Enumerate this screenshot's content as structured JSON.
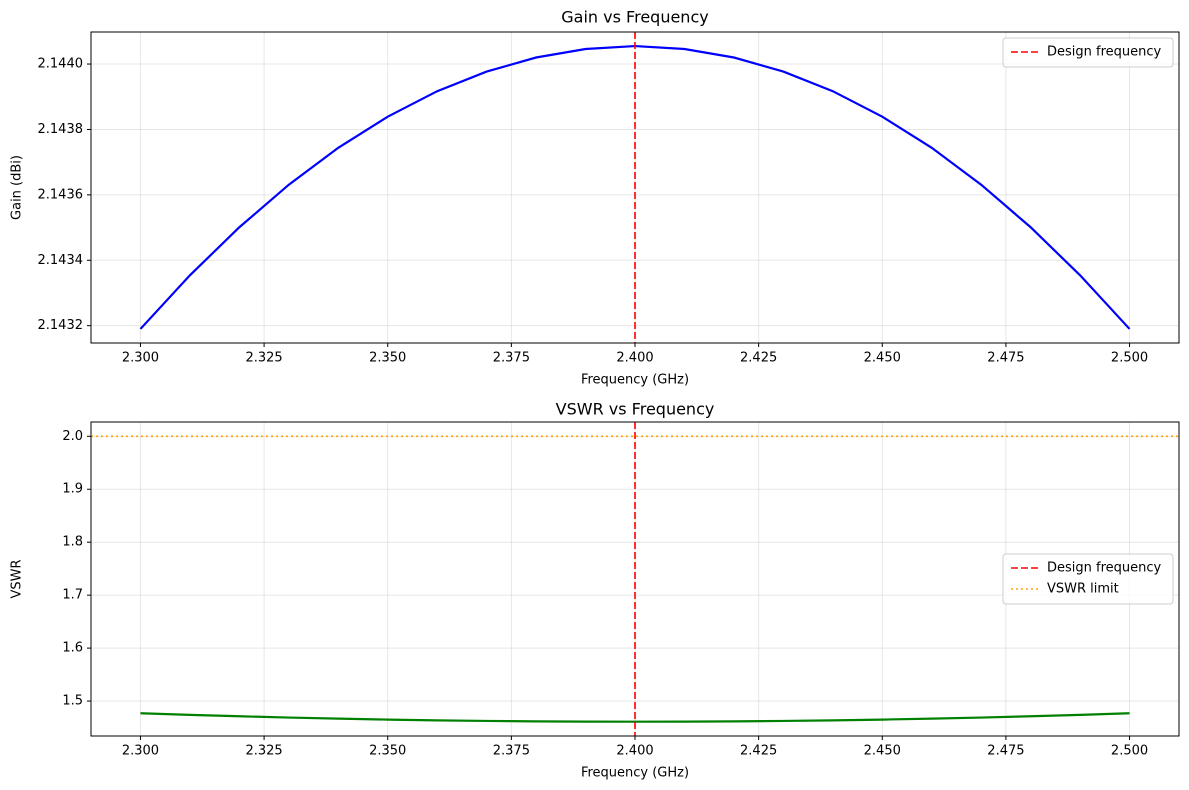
{
  "chart_data": [
    {
      "type": "line",
      "title": "Gain vs Frequency",
      "xlabel": "Frequency (GHz)",
      "ylabel": "Gain (dBi)",
      "x": [
        2.3,
        2.31,
        2.32,
        2.33,
        2.34,
        2.35,
        2.36,
        2.37,
        2.38,
        2.39,
        2.4,
        2.41,
        2.42,
        2.43,
        2.44,
        2.45,
        2.46,
        2.47,
        2.48,
        2.49,
        2.5
      ],
      "values": [
        2.14319,
        2.143354,
        2.143501,
        2.143631,
        2.143744,
        2.143839,
        2.143917,
        2.143977,
        2.14402,
        2.144046,
        2.144055,
        2.144046,
        2.14402,
        2.143977,
        2.143917,
        2.143839,
        2.143744,
        2.143631,
        2.143501,
        2.143354,
        2.14319
      ],
      "color": "#0000ff",
      "xlim": [
        2.29,
        2.51
      ],
      "ylim": [
        2.143147,
        2.144098
      ],
      "xticks": [
        {
          "value": 2.3,
          "label": "2.300"
        },
        {
          "value": 2.325,
          "label": "2.325"
        },
        {
          "value": 2.35,
          "label": "2.350"
        },
        {
          "value": 2.375,
          "label": "2.375"
        },
        {
          "value": 2.4,
          "label": "2.400"
        },
        {
          "value": 2.425,
          "label": "2.425"
        },
        {
          "value": 2.45,
          "label": "2.450"
        },
        {
          "value": 2.475,
          "label": "2.475"
        },
        {
          "value": 2.5,
          "label": "2.500"
        }
      ],
      "yticks": [
        2.1432,
        2.1434,
        2.1436,
        2.1438,
        {
          "value": 2.144,
          "label": "2.1440"
        }
      ],
      "vlines": [
        {
          "x": 2.4,
          "label": "Design frequency",
          "color": "#ff0000",
          "style": "dashed"
        }
      ],
      "hlines": [],
      "grid": true,
      "legend": "upper right"
    },
    {
      "type": "line",
      "title": "VSWR vs Frequency",
      "xlabel": "Frequency (GHz)",
      "ylabel": "VSWR",
      "x": [
        2.3,
        2.31,
        2.32,
        2.33,
        2.34,
        2.35,
        2.36,
        2.37,
        2.38,
        2.39,
        2.4,
        2.41,
        2.42,
        2.43,
        2.44,
        2.45,
        2.46,
        2.47,
        2.48,
        2.49,
        2.5
      ],
      "values": [
        1.477,
        1.47396,
        1.47124,
        1.46884,
        1.46676,
        1.465,
        1.46356,
        1.46244,
        1.46164,
        1.46116,
        1.461,
        1.46116,
        1.46164,
        1.46244,
        1.46356,
        1.465,
        1.46676,
        1.46884,
        1.47124,
        1.47396,
        1.477
      ],
      "color": "#008000",
      "xlim": [
        2.29,
        2.51
      ],
      "ylim": [
        1.434,
        2.027
      ],
      "xticks": [
        {
          "value": 2.3,
          "label": "2.300"
        },
        {
          "value": 2.325,
          "label": "2.325"
        },
        {
          "value": 2.35,
          "label": "2.350"
        },
        {
          "value": 2.375,
          "label": "2.375"
        },
        {
          "value": 2.4,
          "label": "2.400"
        },
        {
          "value": 2.425,
          "label": "2.425"
        },
        {
          "value": 2.45,
          "label": "2.450"
        },
        {
          "value": 2.475,
          "label": "2.475"
        },
        {
          "value": 2.5,
          "label": "2.500"
        }
      ],
      "yticks": [
        1.5,
        1.6,
        1.7,
        1.8,
        1.9,
        {
          "value": 2,
          "label": "2.0"
        }
      ],
      "vlines": [
        {
          "x": 2.4,
          "label": "Design frequency",
          "color": "#ff0000",
          "style": "dashed"
        }
      ],
      "hlines": [
        {
          "y": 2,
          "label": "VSWR limit",
          "color": "#ffa500",
          "style": "dotted"
        }
      ],
      "grid": true,
      "legend": "center right"
    }
  ]
}
